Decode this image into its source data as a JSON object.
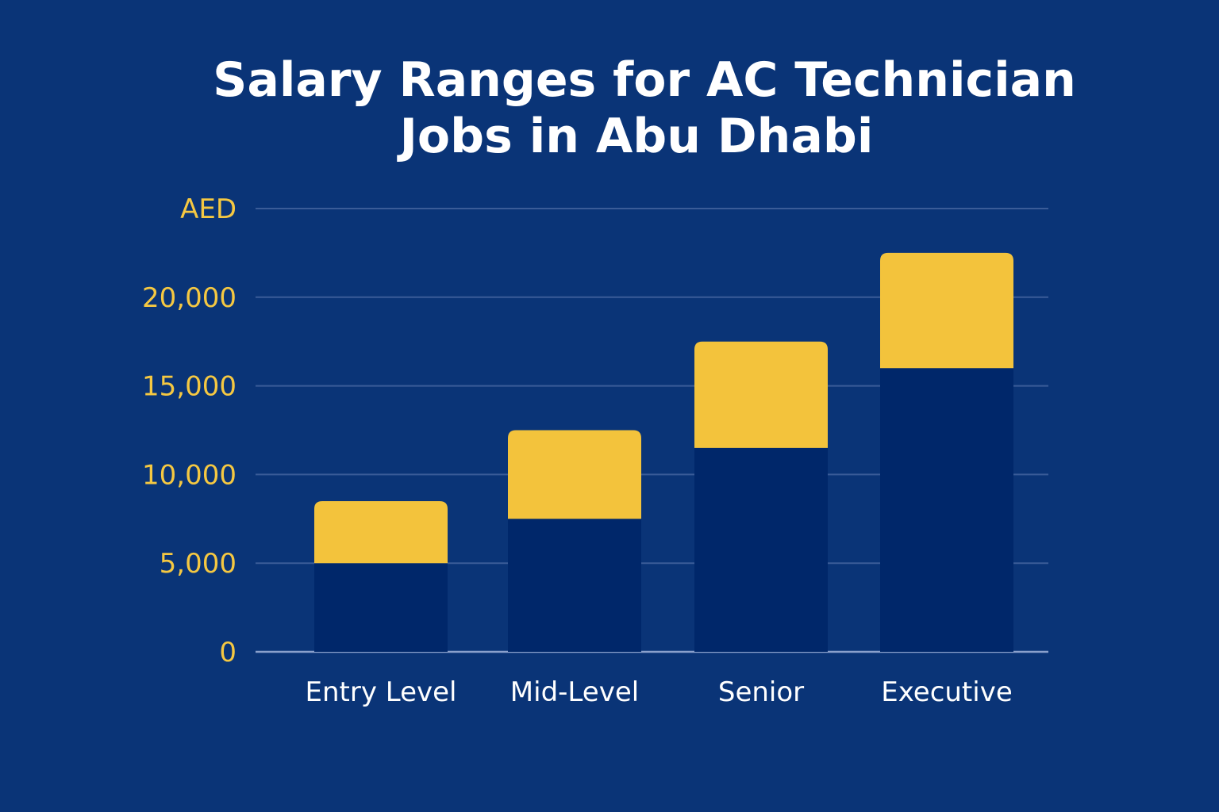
{
  "chart_data": {
    "type": "bar",
    "stacked": true,
    "title": "Salary Ranges for AC Technician Jobs in Abu Dhabi",
    "title_lines": [
      "Salary Ranges for AC Technician",
      "Jobs in Abu Dhabi"
    ],
    "ylabel": "AED",
    "xlabel": "",
    "ylim": [
      0,
      25000
    ],
    "yticks": [
      0,
      5000,
      10000,
      15000,
      20000
    ],
    "ytick_labels": [
      "0",
      "5,000",
      "10,000",
      "15,000",
      "20,000"
    ],
    "grid": true,
    "categories": [
      "Entry Level",
      "Mid-Level",
      "Senior",
      "Executive"
    ],
    "min_salary": [
      5000,
      7500,
      11500,
      16000
    ],
    "max_salary": [
      8500,
      12500,
      17500,
      22500
    ],
    "colors": {
      "background": "#0a3477",
      "min_segment": "#00276a",
      "range_segment": "#f3c33c",
      "tick_text": "#f5c842",
      "title_text": "#ffffff",
      "grid": "#3a5c98",
      "axis": "#8aa0cc"
    }
  }
}
